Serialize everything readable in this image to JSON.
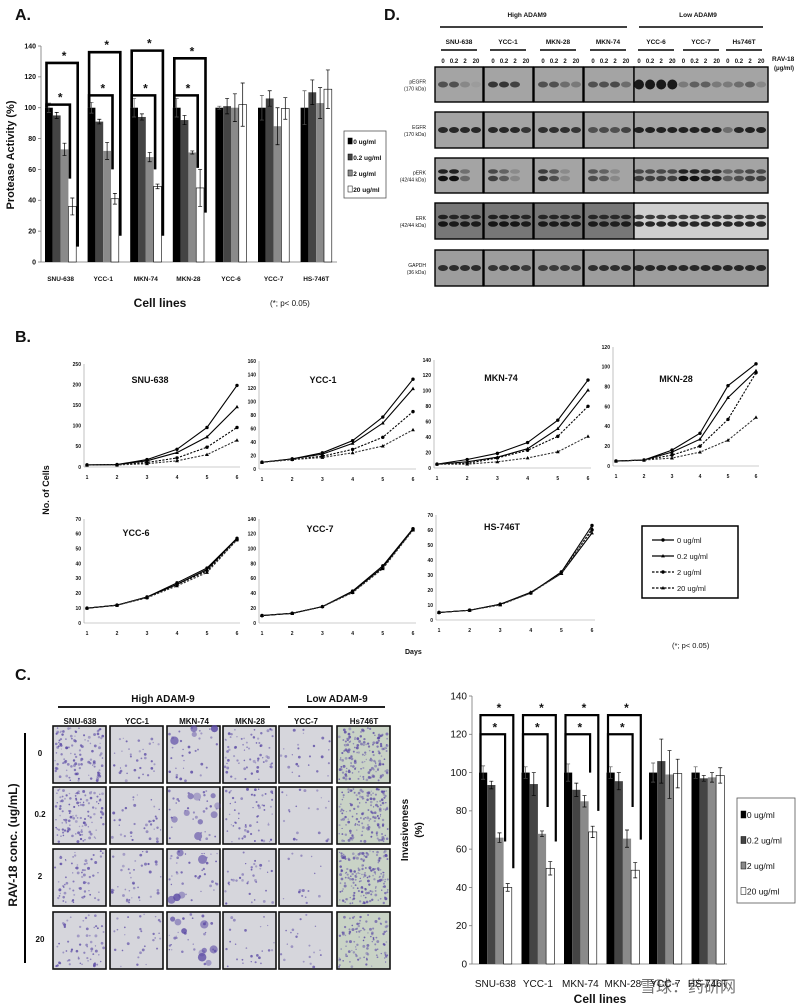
{
  "panels": {
    "A": "A.",
    "B": "B.",
    "C": "C.",
    "D": "D."
  },
  "star": "*",
  "significance_note": "(*; p< 0.05)",
  "legend": [
    "0 ug/ml",
    "0.2 ug/ml",
    "2 ug/ml",
    "20 ug/ml"
  ],
  "colors": {
    "dose_0": "#000000",
    "dose_0_2": "#444444",
    "dose_2": "#8a8a8a",
    "dose_20": "#ffffff",
    "stain": "#5b4aa5"
  },
  "chart_data": [
    {
      "type": "bar",
      "title": "",
      "xlabel": "Cell lines",
      "ylabel": "Protease Activity (%)",
      "ylim": [
        0,
        140
      ],
      "yticks": [
        0,
        20,
        40,
        60,
        80,
        100,
        120,
        140
      ],
      "legend_position": "right",
      "grid": false,
      "categories": [
        "SNU-638",
        "YCC-1",
        "MKN-74",
        "MKN-28",
        "YCC-6",
        "YCC-7",
        "HS-746T"
      ],
      "series": [
        {
          "name": "0 ug/ml",
          "values": [
            100,
            100,
            100,
            100,
            100,
            100,
            100
          ],
          "errors": [
            3,
            3.5,
            6,
            6,
            1,
            8,
            11
          ]
        },
        {
          "name": "0.2 ug/ml",
          "values": [
            95,
            91,
            94,
            92,
            101,
            106,
            110
          ],
          "errors": [
            2,
            1.5,
            2,
            3,
            5,
            5,
            8
          ]
        },
        {
          "name": "2 ug/ml",
          "values": [
            73,
            72,
            68,
            71,
            100,
            88,
            103
          ],
          "errors": [
            4,
            5.5,
            3,
            1,
            9,
            12,
            10
          ]
        },
        {
          "name": "20 ug/ml",
          "values": [
            36,
            41,
            49,
            48,
            102,
            99.5,
            112
          ],
          "errors": [
            5.5,
            3.5,
            1.5,
            12,
            14,
            7,
            12.5
          ]
        }
      ],
      "significance": [
        {
          "category": "SNU-638",
          "comparisons": [
            [
              "0 ug/ml",
              "20 ug/ml"
            ],
            [
              "0 ug/ml",
              "2 ug/ml"
            ]
          ]
        },
        {
          "category": "YCC-1",
          "comparisons": [
            [
              "0 ug/ml",
              "20 ug/ml"
            ],
            [
              "0 ug/ml",
              "2 ug/ml"
            ]
          ]
        },
        {
          "category": "MKN-74",
          "comparisons": [
            [
              "0 ug/ml",
              "20 ug/ml"
            ],
            [
              "0 ug/ml",
              "2 ug/ml"
            ]
          ]
        },
        {
          "category": "MKN-28",
          "comparisons": [
            [
              "0 ug/ml",
              "20 ug/ml"
            ],
            [
              "0 ug/ml",
              "2 ug/ml"
            ]
          ]
        }
      ]
    },
    {
      "type": "line",
      "xlabel": "Days",
      "ylabel": "No. of Cells",
      "legend_position": "bottom-right",
      "x": [
        1,
        2,
        3,
        4,
        5,
        6
      ],
      "subplots": [
        {
          "title": "SNU-638",
          "ylim": [
            0,
            250
          ],
          "yticks": [
            0,
            50,
            100,
            150,
            200,
            250
          ],
          "series": [
            {
              "name": "0 ug/ml",
              "values": [
                5,
                6,
                18,
                43,
                96,
                198
              ]
            },
            {
              "name": "0.2 ug/ml",
              "values": [
                5,
                6,
                15,
                35,
                73,
                146
              ]
            },
            {
              "name": "2 ug/ml",
              "values": [
                5,
                5,
                11,
                22,
                48,
                96
              ]
            },
            {
              "name": "20 ug/ml",
              "values": [
                5,
                5,
                8,
                15,
                30,
                65
              ]
            }
          ]
        },
        {
          "title": "YCC-1",
          "ylim": [
            0,
            160
          ],
          "yticks": [
            0,
            20,
            40,
            60,
            80,
            100,
            120,
            140,
            160
          ],
          "series": [
            {
              "name": "0 ug/ml",
              "values": [
                10,
                15,
                24,
                42,
                77,
                133
              ]
            },
            {
              "name": "0.2 ug/ml",
              "values": [
                10,
                15,
                22,
                38,
                68,
                119
              ]
            },
            {
              "name": "2 ug/ml",
              "values": [
                10,
                14,
                19,
                29,
                47,
                85
              ]
            },
            {
              "name": "20 ug/ml",
              "values": [
                10,
                14,
                17,
                24,
                34,
                58
              ]
            }
          ]
        },
        {
          "title": "MKN-74",
          "ylim": [
            0,
            140
          ],
          "yticks": [
            0,
            20,
            40,
            60,
            80,
            100,
            120,
            140
          ],
          "series": [
            {
              "name": "0 ug/ml",
              "values": [
                5,
                11,
                19,
                33,
                62,
                114
              ]
            },
            {
              "name": "0.2 ug/ml",
              "values": [
                5,
                8,
                14,
                25,
                51,
                101
              ]
            },
            {
              "name": "2 ug/ml",
              "values": [
                5,
                6,
                13,
                23,
                41,
                80
              ]
            },
            {
              "name": "20 ug/ml",
              "values": [
                5,
                5,
                8,
                13,
                21,
                41
              ]
            }
          ]
        },
        {
          "title": "MKN-28",
          "ylim": [
            0,
            120
          ],
          "yticks": [
            0,
            20,
            40,
            60,
            80,
            100,
            120
          ],
          "series": [
            {
              "name": "0 ug/ml",
              "values": [
                5,
                6,
                16,
                33,
                81,
                103
              ]
            },
            {
              "name": "0.2 ug/ml",
              "values": [
                5,
                6,
                14,
                27,
                69,
                96
              ]
            },
            {
              "name": "2 ug/ml",
              "values": [
                5,
                6,
                11,
                20,
                47,
                94
              ]
            },
            {
              "name": "20 ug/ml",
              "values": [
                5,
                6,
                8,
                14,
                26,
                49
              ]
            }
          ]
        },
        {
          "title": "YCC-6",
          "ylim": [
            0,
            70
          ],
          "yticks": [
            0,
            10,
            20,
            30,
            40,
            50,
            60,
            70
          ],
          "series": [
            {
              "name": "0 ug/ml",
              "values": [
                10,
                12,
                17.5,
                27,
                37,
                57
              ]
            },
            {
              "name": "0.2 ug/ml",
              "values": [
                10,
                12,
                17.5,
                26,
                36,
                57
              ]
            },
            {
              "name": "2 ug/ml",
              "values": [
                10,
                12,
                17,
                26,
                35,
                56
              ]
            },
            {
              "name": "20 ug/ml",
              "values": [
                10,
                12,
                17,
                25,
                34,
                56
              ]
            }
          ]
        },
        {
          "title": "YCC-7",
          "ylim": [
            0,
            140
          ],
          "yticks": [
            0,
            20,
            40,
            60,
            80,
            100,
            120,
            140
          ],
          "series": [
            {
              "name": "0 ug/ml",
              "values": [
                10,
                13,
                22,
                43,
                77,
                127
              ]
            },
            {
              "name": "0.2 ug/ml",
              "values": [
                10,
                13,
                22,
                42,
                75,
                126
              ]
            },
            {
              "name": "2 ug/ml",
              "values": [
                10,
                13,
                22,
                41,
                74,
                126
              ]
            },
            {
              "name": "20 ug/ml",
              "values": [
                10,
                13,
                22,
                41,
                73,
                125
              ]
            }
          ]
        },
        {
          "title": "HS-746T",
          "ylim": [
            0,
            70
          ],
          "yticks": [
            0,
            10,
            20,
            30,
            40,
            50,
            60,
            70
          ],
          "series": [
            {
              "name": "0 ug/ml",
              "values": [
                5,
                6.5,
                10.5,
                18,
                32,
                63
              ]
            },
            {
              "name": "0.2 ug/ml",
              "values": [
                5,
                6.5,
                10.5,
                18.5,
                31,
                58
              ]
            },
            {
              "name": "2 ug/ml",
              "values": [
                5,
                6.5,
                10.5,
                18,
                32,
                60
              ]
            },
            {
              "name": "20 ug/ml",
              "values": [
                5,
                6.5,
                10,
                18,
                31,
                61
              ]
            }
          ]
        }
      ]
    },
    {
      "type": "bar",
      "title": "",
      "xlabel": "Cell lines",
      "ylabel": [
        "Invasiveness",
        "(%)"
      ],
      "ylim": [
        0,
        140
      ],
      "yticks": [
        0,
        20,
        40,
        60,
        80,
        100,
        120,
        140
      ],
      "legend_position": "right",
      "grid": false,
      "categories": [
        "SNU-638",
        "YCC-1",
        "MKN-74",
        "MKN-28",
        "YCC-7",
        "HS-746T"
      ],
      "series": [
        {
          "name": "0 ug/ml",
          "values": [
            100,
            100,
            100,
            100,
            100,
            100
          ],
          "errors": [
            3.5,
            3,
            4.5,
            3,
            5,
            3
          ]
        },
        {
          "name": "0.2 ug/ml",
          "values": [
            93.5,
            94,
            91,
            95.5,
            106,
            97
          ],
          "errors": [
            2,
            6,
            3.5,
            4.5,
            11.5,
            1.5
          ]
        },
        {
          "name": "2 ug/ml",
          "values": [
            66,
            68,
            85,
            65.5,
            99,
            97.5
          ],
          "errors": [
            2.5,
            1.5,
            3,
            4.5,
            12.5,
            2.5
          ]
        },
        {
          "name": "20 ug/ml",
          "values": [
            40,
            50,
            69,
            49,
            99.5,
            98.5
          ],
          "errors": [
            2,
            3.5,
            3,
            4,
            7.5,
            4
          ]
        }
      ],
      "significance": [
        {
          "category": "SNU-638",
          "comparisons": [
            [
              "0 ug/ml",
              "20 ug/ml"
            ],
            [
              "0 ug/ml",
              "2 ug/ml"
            ]
          ]
        },
        {
          "category": "YCC-1",
          "comparisons": [
            [
              "0 ug/ml",
              "20 ug/ml"
            ],
            [
              "0 ug/ml",
              "2 ug/ml"
            ]
          ]
        },
        {
          "category": "MKN-74",
          "comparisons": [
            [
              "0 ug/ml",
              "20 ug/ml"
            ],
            [
              "0 ug/ml",
              "2 ug/ml"
            ]
          ]
        },
        {
          "category": "MKN-28",
          "comparisons": [
            [
              "0 ug/ml",
              "20 ug/ml"
            ],
            [
              "0 ug/ml",
              "2 ug/ml"
            ]
          ]
        }
      ]
    }
  ],
  "panel_d": {
    "groups": [
      "High ADAM9",
      "Low ADAM9"
    ],
    "cell_lines": [
      "SNU-638",
      "YCC-1",
      "MKN-28",
      "MKN-74",
      "YCC-6",
      "YCC-7",
      "Hs746T"
    ],
    "lanes": [
      "0",
      "0.2",
      "2",
      "20"
    ],
    "treatment_label": [
      "RAV-18",
      "(μg/ml)"
    ],
    "rows": [
      {
        "label": "pEGFR",
        "size": "(170 kDa)",
        "band_intensity": [
          [
            0.6,
            0.6,
            0.2,
            0.05
          ],
          [
            0.8,
            0.8,
            0.7,
            0
          ],
          [
            0.6,
            0.6,
            0.4,
            0.3
          ],
          [
            0.6,
            0.6,
            0.65,
            0.4
          ],
          [
            1,
            1,
            1,
            1
          ],
          [
            0.3,
            0.5,
            0.5,
            0.3
          ],
          [
            0.3,
            0.4,
            0.5,
            0.2
          ]
        ]
      },
      {
        "label": "EGFR",
        "size": "(170 kDa)",
        "band_intensity": [
          [
            0.9,
            0.9,
            0.9,
            0.9
          ],
          [
            0.9,
            0.9,
            0.9,
            0.8
          ],
          [
            0.85,
            0.85,
            0.85,
            0.8
          ],
          [
            0.6,
            0.65,
            0.6,
            0.7
          ],
          [
            0.95,
            0.95,
            0.95,
            0.95
          ],
          [
            0.95,
            0.95,
            0.95,
            0.95
          ],
          [
            0.4,
            0.9,
            0.95,
            0.95
          ]
        ]
      },
      {
        "label": "pERK",
        "size": "(42/44 kDa)",
        "band_intensity": [
          [
            1,
            1,
            0.4,
            0
          ],
          [
            0.7,
            0.5,
            0.2,
            0
          ],
          [
            0.8,
            0.6,
            0.2,
            0
          ],
          [
            0.6,
            0.5,
            0.2,
            0
          ],
          [
            0.7,
            0.7,
            0.7,
            0.7
          ],
          [
            1,
            1,
            0.9,
            0.9
          ],
          [
            0.5,
            0.6,
            0.7,
            0.7
          ]
        ]
      },
      {
        "label": "ERK",
        "size": "(42/44 kDa)",
        "band_intensity": [
          [
            0.95,
            0.9,
            0.9,
            0.9
          ],
          [
            0.95,
            0.95,
            0.95,
            0.9
          ],
          [
            0.9,
            0.9,
            0.9,
            0.9
          ],
          [
            0.9,
            0.85,
            0.85,
            0.9
          ],
          [
            0.9,
            0.9,
            0.9,
            0.9
          ],
          [
            0.9,
            0.9,
            0.9,
            0.9
          ],
          [
            0.9,
            0.9,
            0.9,
            0.9
          ]
        ]
      },
      {
        "label": "GAPDH",
        "size": "(36 kDa)",
        "band_intensity": [
          [
            0.85,
            0.85,
            0.85,
            0.85
          ],
          [
            0.8,
            0.8,
            0.85,
            0.75
          ],
          [
            0.75,
            0.75,
            0.75,
            0.75
          ],
          [
            0.85,
            0.85,
            0.85,
            0.85
          ],
          [
            0.9,
            0.9,
            0.9,
            0.9
          ],
          [
            0.9,
            0.9,
            0.9,
            0.9
          ],
          [
            0.9,
            0.9,
            0.9,
            0.9
          ]
        ]
      }
    ]
  },
  "panel_c_images": {
    "groups": [
      "High ADAM-9",
      "Low ADAM-9"
    ],
    "cell_lines": [
      "SNU-638",
      "YCC-1",
      "MKN-74",
      "MKN-28",
      "YCC-7",
      "Hs746T"
    ],
    "concentrations": [
      "0",
      "0.2",
      "2",
      "20"
    ],
    "axis_label": "RAV-18 conc. (ug/mL)"
  },
  "watermark": "雪球：药研网"
}
